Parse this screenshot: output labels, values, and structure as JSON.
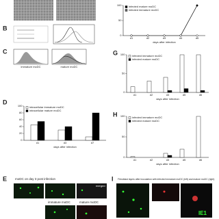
{
  "panel_labels": [
    "B",
    "C",
    "D",
    "E",
    "G",
    "H",
    "I"
  ],
  "texts": {
    "c_left": "immature moDC",
    "c_right": "mature moDC",
    "e_title": "moDC on day 3 post infection",
    "e_merged": "merged",
    "e_immature": "immature moDC",
    "e_mature": "mature moDC",
    "i_title": "Fibroblast layers after inoculation with infected immature moDC (left) and mature moDC (right)",
    "i_marker": "IE1"
  },
  "chart_data": [
    {
      "type": "bar",
      "panel": "D",
      "xlabel": "days after infection",
      "categories": [
        "d1",
        "d3",
        "d7"
      ],
      "series": [
        {
          "name": "intracellular immature moDC",
          "color": "#ffffff",
          "values": [
            45,
            30,
            10
          ]
        },
        {
          "name": "intracellular mature moDC",
          "color": "#000000",
          "values": [
            55,
            40,
            80
          ]
        }
      ],
      "ylim": [
        0,
        100
      ],
      "yticks": [
        0,
        20,
        40,
        60,
        80,
        100
      ]
    },
    {
      "type": "line",
      "panel": "F",
      "xlabel": "days after infection",
      "categories": [
        "d1",
        "d2",
        "d3",
        "d4",
        "d5"
      ],
      "series": [
        {
          "name": "infected mature moDC",
          "color": "#000000",
          "values": [
            0,
            0,
            0,
            0,
            100
          ]
        },
        {
          "name": "infected immature moDC",
          "color": "#666666",
          "values": [
            0,
            0,
            0,
            0,
            0
          ]
        }
      ],
      "ylim": [
        0,
        100
      ],
      "yticks": [
        0,
        50,
        100
      ]
    },
    {
      "type": "bar",
      "panel": "G",
      "xlabel": "days after infection",
      "categories": [
        "d1",
        "d2",
        "d3",
        "d5",
        "d6"
      ],
      "series": [
        {
          "name": "infected immature moDC",
          "color": "#ffffff",
          "values": [
            15,
            30,
            40,
            100,
            100
          ]
        },
        {
          "name": "infected mature moDC",
          "color": "#000000",
          "values": [
            0,
            0,
            5,
            10,
            5
          ]
        }
      ],
      "ylim": [
        0,
        100
      ],
      "yticks": [
        0,
        50,
        100
      ]
    },
    {
      "type": "bar",
      "panel": "H",
      "xlabel": "days after infection",
      "categories": [
        "d1",
        "d2",
        "d3",
        "d5",
        "d6"
      ],
      "series": [
        {
          "name": "infected immature moDC",
          "color": "#ffffff",
          "values": [
            2,
            0,
            10,
            20,
            100
          ]
        },
        {
          "name": "infected mature moDC",
          "color": "#000000",
          "values": [
            0,
            0,
            5,
            0,
            0
          ]
        }
      ],
      "ylim": [
        0,
        100
      ],
      "yticks": [
        0,
        50,
        100
      ]
    }
  ]
}
